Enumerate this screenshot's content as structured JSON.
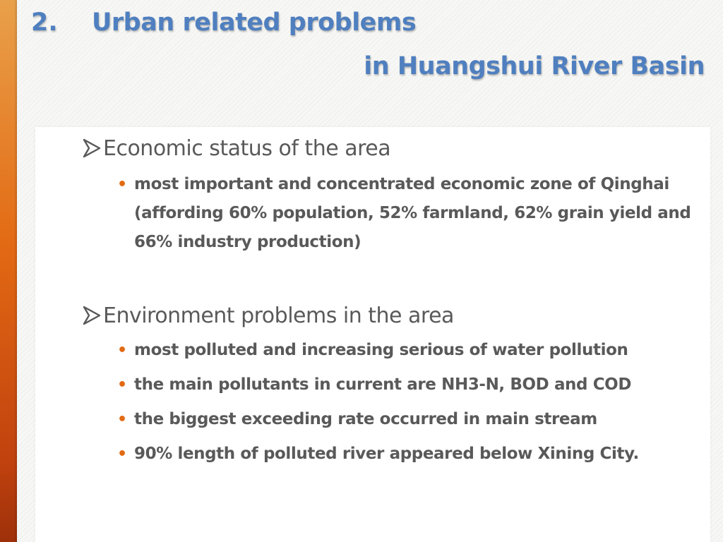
{
  "title": {
    "number": "2.",
    "line1": "Urban related problems",
    "line2": "in Huangshui River Basin"
  },
  "colors": {
    "title": "#4f7fbf",
    "text": "#595959",
    "accent": "#e36a14"
  },
  "sections": [
    {
      "heading": "Economic status of the area",
      "bullets": [
        "most important and concentrated economic zone of Qinghai (affording 60% population, 52% farmland, 62% grain yield and 66% industry  production)"
      ]
    },
    {
      "heading": "Environment problems in the area",
      "bullets": [
        "most polluted and increasing serious of water pollution",
        "the main pollutants in current are NH3-N, BOD and COD",
        "the biggest exceeding rate occurred in main stream",
        "90% length of polluted river appeared below Xining City."
      ]
    }
  ],
  "icons": {
    "bullet_marker": "arrow-right-icon",
    "sub_bullet": "dot-icon"
  }
}
